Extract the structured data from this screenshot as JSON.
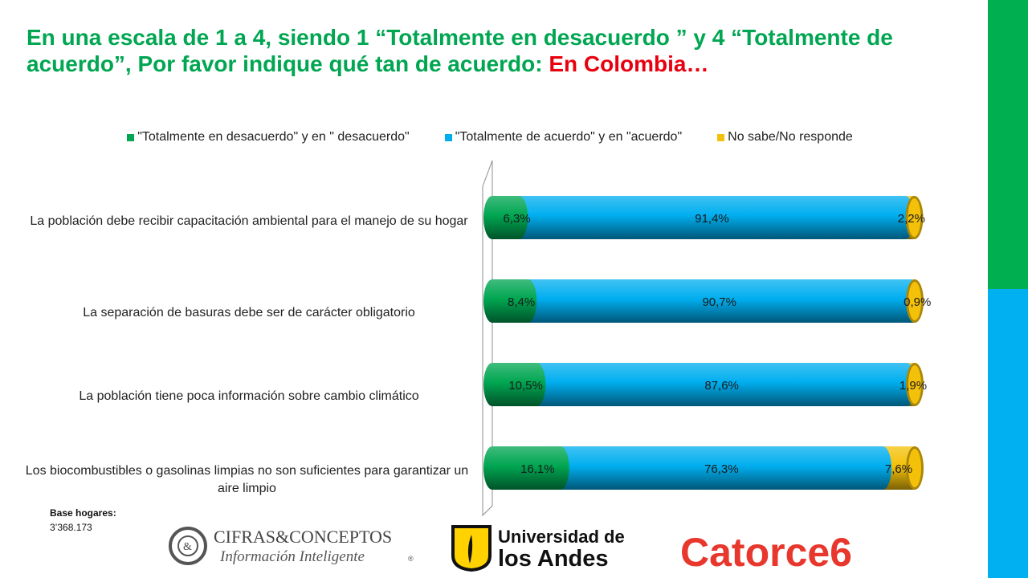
{
  "title": {
    "text_main": "En una escala de 1 a 4, siendo 1 “Totalmente en desacuerdo ” y 4 “Totalmente de acuerdo”, Por favor indique qué tan de acuerdo: ",
    "text_highlight": "En Colombia…"
  },
  "colors": {
    "title_main": "#00A651",
    "title_highlight": "#E8000F",
    "series_1": "#00A651",
    "series_2": "#00AEEF",
    "series_3": "#F4C10A",
    "deco_green": "#00B050",
    "deco_blue": "#00B0F0"
  },
  "legend": [
    "\"Totalmente en desacuerdo\" y en \" desacuerdo\"",
    "\"Totalmente de acuerdo\" y en \"acuerdo\"",
    "No sabe/No responde"
  ],
  "chart_data": {
    "type": "bar",
    "orientation": "horizontal",
    "stacked": "100%",
    "categories": [
      "La población debe recibir capacitación ambiental para el manejo de su hogar",
      "La separación de basuras debe ser de carácter obligatorio",
      "La población  tiene poca información sobre cambio climático",
      "Los biocombustibles o gasolinas limpias no son suficientes para garantizar un aire limpio"
    ],
    "series": [
      {
        "name": "\"Totalmente en desacuerdo\" y en \" desacuerdo\"",
        "values": [
          6.3,
          8.4,
          10.5,
          16.1
        ],
        "labels": [
          "6,3%",
          "8,4%",
          "10,5%",
          "16,1%"
        ]
      },
      {
        "name": "\"Totalmente de acuerdo\" y en \"acuerdo\"",
        "values": [
          91.4,
          90.7,
          87.6,
          76.3
        ],
        "labels": [
          "91,4%",
          "90,7%",
          "87,6%",
          "76,3%"
        ]
      },
      {
        "name": "No sabe/No responde",
        "values": [
          2.2,
          0.9,
          1.9,
          7.6
        ],
        "labels": [
          "2,2%",
          "0,9%",
          "1,9%",
          "7,6%"
        ]
      }
    ],
    "xlim": [
      0,
      100
    ],
    "legend_position": "top",
    "grid": false
  },
  "base": {
    "title": "Base hogares:",
    "value": "3’368.173"
  },
  "logos": {
    "cifras": {
      "line1": "CIFRAS&CONCEPTOS",
      "line2": "Información Inteligente",
      "mark": "®"
    },
    "andes": {
      "line1": "Universidad de",
      "line2": "los Andes"
    },
    "catorce": {
      "text": "Catorce6"
    }
  }
}
